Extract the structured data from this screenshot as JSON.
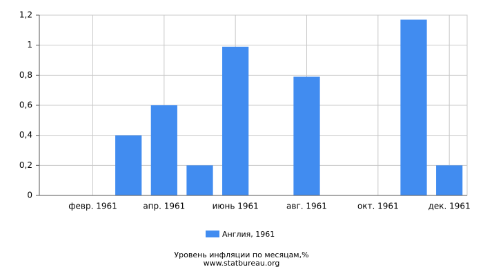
{
  "chart_data": {
    "type": "bar",
    "title": "Уровень инфляции по месяцам,%",
    "subtitle": "www.statbureau.org",
    "categories": [
      null,
      "февр. 1961",
      null,
      "апр. 1961",
      null,
      "июнь 1961",
      null,
      "авг. 1961",
      null,
      "окт. 1961",
      null,
      "дек. 1961"
    ],
    "series": [
      {
        "name": "Англия, 1961",
        "color": "#418cf0",
        "values": [
          0,
          0,
          0.4,
          0.6,
          0.2,
          0.99,
          0,
          0.79,
          0,
          0,
          1.17,
          0.2
        ]
      }
    ],
    "ylim": [
      0,
      1.2
    ],
    "yticks": [
      0,
      {
        "value": 0.2,
        "label": "0,2"
      },
      {
        "value": 0.4,
        "label": "0,4"
      },
      {
        "value": 0.6,
        "label": "0,6"
      },
      {
        "value": 0.8,
        "label": "0,8"
      },
      1,
      {
        "value": 1.2,
        "label": "1,2"
      }
    ],
    "grid": true
  }
}
